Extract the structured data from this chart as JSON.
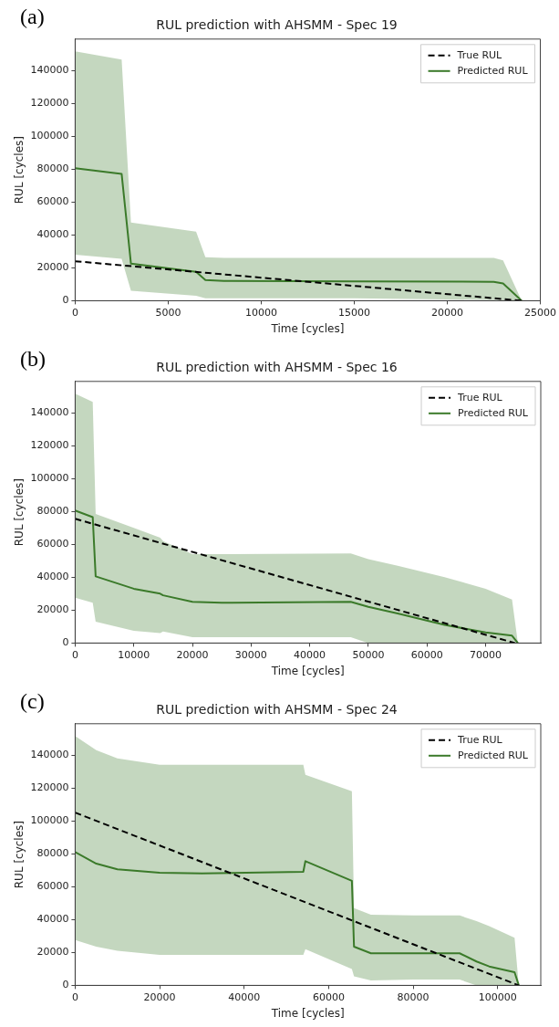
{
  "chart_data": [
    {
      "type": "line",
      "title": "RUL prediction with AHSMM - Spec 19",
      "xlabel": "Time [cycles]",
      "ylabel": "RUL [cycles]",
      "annotations": [
        "(a)"
      ],
      "xlim": [
        0,
        25000
      ],
      "xticks": [
        0,
        5000,
        10000,
        15000,
        20000,
        25000
      ],
      "ylim": [
        0,
        159000
      ],
      "yticks": [
        0,
        20000,
        40000,
        60000,
        80000,
        100000,
        120000,
        140000
      ],
      "legend": "top right",
      "marker": "none",
      "series": [
        {
          "name": "True RUL",
          "color": "#000000",
          "line_style": "dashed",
          "x": [
            0,
            24000
          ],
          "values": [
            24000,
            0
          ]
        },
        {
          "name": "Predicted RUL",
          "color": "#3b7a2a",
          "line_style": "solid",
          "x": [
            0,
            2500,
            3000,
            6500,
            7000,
            8000,
            15000,
            22500,
            23000,
            24000
          ],
          "values": [
            80500,
            77000,
            22500,
            17500,
            12500,
            12000,
            11700,
            11500,
            10500,
            0
          ],
          "lower": [
            28000,
            25500,
            6000,
            3000,
            1500,
            1500,
            1500,
            500,
            300,
            0
          ],
          "upper": [
            151500,
            146500,
            47500,
            42000,
            26500,
            26000,
            26000,
            26000,
            24500,
            0
          ]
        }
      ]
    },
    {
      "type": "line",
      "title": "RUL prediction with AHSMM - Spec 16",
      "xlabel": "Time [cycles]",
      "ylabel": "RUL [cycles]",
      "annotations": [
        "(b)"
      ],
      "xlim": [
        0,
        79400
      ],
      "xticks": [
        0,
        10000,
        20000,
        30000,
        40000,
        50000,
        60000,
        70000
      ],
      "ylim": [
        0,
        159000
      ],
      "yticks": [
        0,
        20000,
        40000,
        60000,
        80000,
        100000,
        120000,
        140000
      ],
      "legend": "top right",
      "marker": "none",
      "series": [
        {
          "name": "True RUL",
          "color": "#000000",
          "line_style": "dashed",
          "x": [
            0,
            75000
          ],
          "values": [
            75500,
            0
          ]
        },
        {
          "name": "Predicted RUL",
          "color": "#3b7a2a",
          "line_style": "solid",
          "x": [
            0,
            3000,
            3500,
            10000,
            14500,
            15000,
            20000,
            25000,
            47000,
            50000,
            55000,
            63000,
            70000,
            74500,
            75500
          ],
          "values": [
            80500,
            76500,
            40500,
            33000,
            30000,
            29000,
            25000,
            24500,
            25000,
            22000,
            18000,
            11000,
            6500,
            4500,
            0
          ],
          "lower": [
            27500,
            24500,
            13000,
            7500,
            6000,
            7000,
            3500,
            3500,
            3500,
            0,
            0,
            0,
            0,
            0,
            0
          ],
          "upper": [
            151500,
            146500,
            78500,
            70000,
            64000,
            62000,
            54000,
            54000,
            54500,
            51000,
            47000,
            40000,
            33000,
            26500,
            0
          ]
        }
      ]
    },
    {
      "type": "line",
      "title": "RUL prediction with AHSMM - Spec 24",
      "xlabel": "Time [cycles]",
      "ylabel": "RUL [cycles]",
      "annotations": [
        "(c)"
      ],
      "xlim": [
        0,
        110200
      ],
      "xticks": [
        0,
        20000,
        40000,
        60000,
        80000,
        100000
      ],
      "ylim": [
        0,
        159000
      ],
      "yticks": [
        0,
        20000,
        40000,
        60000,
        80000,
        100000,
        120000,
        140000
      ],
      "legend": "top right",
      "marker": "none",
      "series": [
        {
          "name": "True RUL",
          "color": "#000000",
          "line_style": "dashed",
          "x": [
            0,
            105000
          ],
          "values": [
            105000,
            0
          ]
        },
        {
          "name": "Predicted RUL",
          "color": "#3b7a2a",
          "line_style": "solid",
          "x": [
            0,
            5000,
            10000,
            20000,
            30000,
            54000,
            54500,
            65500,
            66000,
            70000,
            80000,
            91000,
            95000,
            98000,
            104000,
            105000
          ],
          "values": [
            81000,
            74000,
            70500,
            68500,
            68000,
            69000,
            75500,
            63500,
            23500,
            19500,
            19500,
            19500,
            14500,
            11500,
            8000,
            0
          ],
          "lower": [
            27500,
            23500,
            21000,
            18500,
            18500,
            18500,
            22000,
            10000,
            5500,
            3000,
            3500,
            3500,
            0,
            0,
            0,
            0
          ],
          "upper": [
            151500,
            143000,
            138000,
            134000,
            134000,
            134000,
            128000,
            118000,
            47000,
            43000,
            42500,
            42500,
            39000,
            36000,
            29000,
            0
          ]
        }
      ]
    }
  ]
}
